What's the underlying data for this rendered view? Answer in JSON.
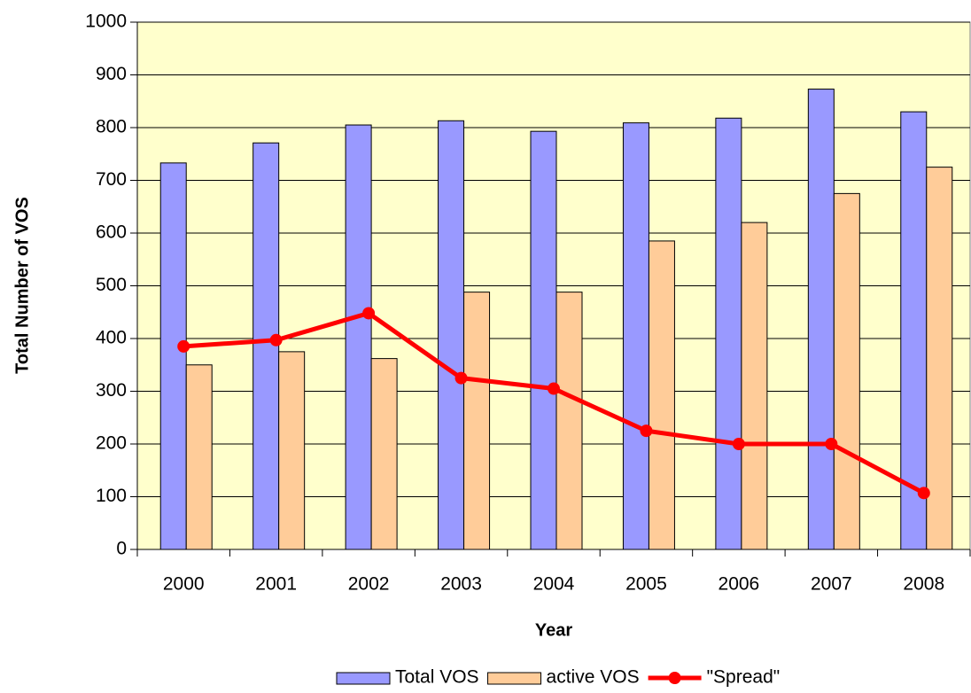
{
  "chart_data": {
    "type": "bar",
    "x_label": "Year",
    "y_label": "Total Number of VOS",
    "categories": [
      "2000",
      "2001",
      "2002",
      "2003",
      "2004",
      "2005",
      "2006",
      "2007",
      "2008"
    ],
    "series": [
      {
        "name": "Total VOS",
        "type": "bar",
        "color": "#9999ff",
        "values": [
          733,
          771,
          805,
          813,
          793,
          809,
          818,
          873,
          830
        ]
      },
      {
        "name": "active VOS",
        "type": "bar",
        "color": "#ffcc99",
        "values": [
          350,
          375,
          362,
          488,
          488,
          585,
          620,
          675,
          725
        ]
      },
      {
        "name": "\"Spread\"",
        "type": "line",
        "color": "#ff0000",
        "values": [
          385,
          397,
          448,
          325,
          305,
          225,
          200,
          200,
          107
        ]
      }
    ],
    "ylim": [
      0,
      1000
    ],
    "yticks": [
      0,
      100,
      200,
      300,
      400,
      500,
      600,
      700,
      800,
      900,
      1000
    ],
    "grid": true,
    "legend": "bottom",
    "plot_background": "#ffffcc"
  }
}
